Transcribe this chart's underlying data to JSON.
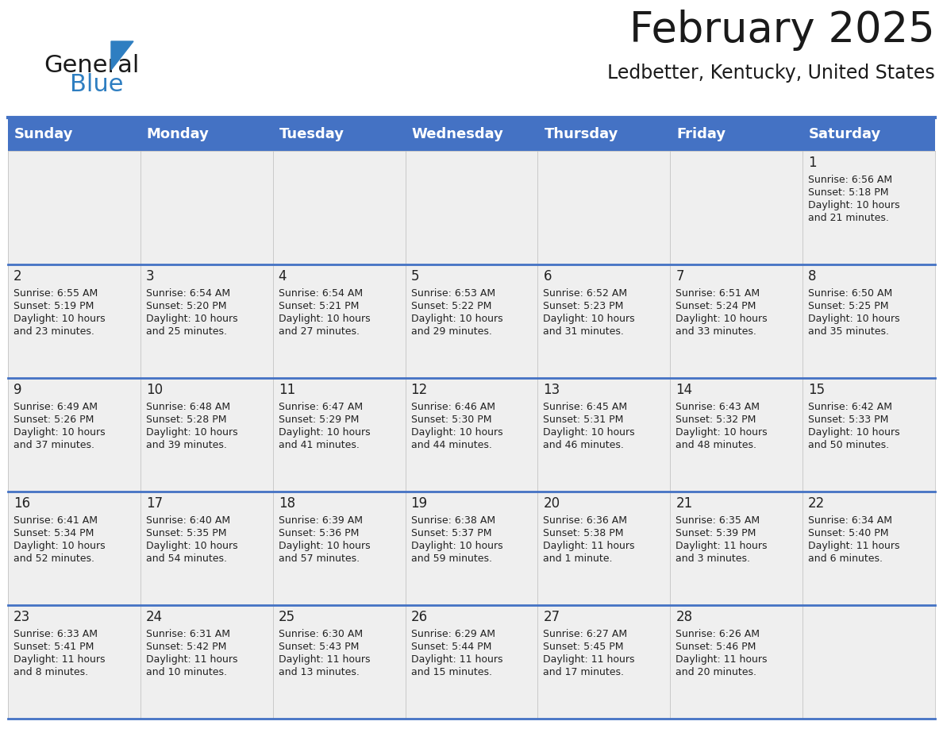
{
  "title": "February 2025",
  "subtitle": "Ledbetter, Kentucky, United States",
  "header_color": "#4472C4",
  "header_text_color": "#FFFFFF",
  "cell_bg_color": "#EFEFEF",
  "day_headers": [
    "Sunday",
    "Monday",
    "Tuesday",
    "Wednesday",
    "Thursday",
    "Friday",
    "Saturday"
  ],
  "title_fontsize": 38,
  "subtitle_fontsize": 17,
  "header_fontsize": 13,
  "day_num_fontsize": 12,
  "cell_text_fontsize": 9,
  "logo_color_general": "#1a1a1a",
  "logo_color_blue": "#2e7ec1",
  "logo_triangle_color": "#2e7ec1",
  "weeks": [
    [
      {
        "day": "",
        "lines": []
      },
      {
        "day": "",
        "lines": []
      },
      {
        "day": "",
        "lines": []
      },
      {
        "day": "",
        "lines": []
      },
      {
        "day": "",
        "lines": []
      },
      {
        "day": "",
        "lines": []
      },
      {
        "day": "1",
        "lines": [
          "Sunrise: 6:56 AM",
          "Sunset: 5:18 PM",
          "Daylight: 10 hours",
          "and 21 minutes."
        ]
      }
    ],
    [
      {
        "day": "2",
        "lines": [
          "Sunrise: 6:55 AM",
          "Sunset: 5:19 PM",
          "Daylight: 10 hours",
          "and 23 minutes."
        ]
      },
      {
        "day": "3",
        "lines": [
          "Sunrise: 6:54 AM",
          "Sunset: 5:20 PM",
          "Daylight: 10 hours",
          "and 25 minutes."
        ]
      },
      {
        "day": "4",
        "lines": [
          "Sunrise: 6:54 AM",
          "Sunset: 5:21 PM",
          "Daylight: 10 hours",
          "and 27 minutes."
        ]
      },
      {
        "day": "5",
        "lines": [
          "Sunrise: 6:53 AM",
          "Sunset: 5:22 PM",
          "Daylight: 10 hours",
          "and 29 minutes."
        ]
      },
      {
        "day": "6",
        "lines": [
          "Sunrise: 6:52 AM",
          "Sunset: 5:23 PM",
          "Daylight: 10 hours",
          "and 31 minutes."
        ]
      },
      {
        "day": "7",
        "lines": [
          "Sunrise: 6:51 AM",
          "Sunset: 5:24 PM",
          "Daylight: 10 hours",
          "and 33 minutes."
        ]
      },
      {
        "day": "8",
        "lines": [
          "Sunrise: 6:50 AM",
          "Sunset: 5:25 PM",
          "Daylight: 10 hours",
          "and 35 minutes."
        ]
      }
    ],
    [
      {
        "day": "9",
        "lines": [
          "Sunrise: 6:49 AM",
          "Sunset: 5:26 PM",
          "Daylight: 10 hours",
          "and 37 minutes."
        ]
      },
      {
        "day": "10",
        "lines": [
          "Sunrise: 6:48 AM",
          "Sunset: 5:28 PM",
          "Daylight: 10 hours",
          "and 39 minutes."
        ]
      },
      {
        "day": "11",
        "lines": [
          "Sunrise: 6:47 AM",
          "Sunset: 5:29 PM",
          "Daylight: 10 hours",
          "and 41 minutes."
        ]
      },
      {
        "day": "12",
        "lines": [
          "Sunrise: 6:46 AM",
          "Sunset: 5:30 PM",
          "Daylight: 10 hours",
          "and 44 minutes."
        ]
      },
      {
        "day": "13",
        "lines": [
          "Sunrise: 6:45 AM",
          "Sunset: 5:31 PM",
          "Daylight: 10 hours",
          "and 46 minutes."
        ]
      },
      {
        "day": "14",
        "lines": [
          "Sunrise: 6:43 AM",
          "Sunset: 5:32 PM",
          "Daylight: 10 hours",
          "and 48 minutes."
        ]
      },
      {
        "day": "15",
        "lines": [
          "Sunrise: 6:42 AM",
          "Sunset: 5:33 PM",
          "Daylight: 10 hours",
          "and 50 minutes."
        ]
      }
    ],
    [
      {
        "day": "16",
        "lines": [
          "Sunrise: 6:41 AM",
          "Sunset: 5:34 PM",
          "Daylight: 10 hours",
          "and 52 minutes."
        ]
      },
      {
        "day": "17",
        "lines": [
          "Sunrise: 6:40 AM",
          "Sunset: 5:35 PM",
          "Daylight: 10 hours",
          "and 54 minutes."
        ]
      },
      {
        "day": "18",
        "lines": [
          "Sunrise: 6:39 AM",
          "Sunset: 5:36 PM",
          "Daylight: 10 hours",
          "and 57 minutes."
        ]
      },
      {
        "day": "19",
        "lines": [
          "Sunrise: 6:38 AM",
          "Sunset: 5:37 PM",
          "Daylight: 10 hours",
          "and 59 minutes."
        ]
      },
      {
        "day": "20",
        "lines": [
          "Sunrise: 6:36 AM",
          "Sunset: 5:38 PM",
          "Daylight: 11 hours",
          "and 1 minute."
        ]
      },
      {
        "day": "21",
        "lines": [
          "Sunrise: 6:35 AM",
          "Sunset: 5:39 PM",
          "Daylight: 11 hours",
          "and 3 minutes."
        ]
      },
      {
        "day": "22",
        "lines": [
          "Sunrise: 6:34 AM",
          "Sunset: 5:40 PM",
          "Daylight: 11 hours",
          "and 6 minutes."
        ]
      }
    ],
    [
      {
        "day": "23",
        "lines": [
          "Sunrise: 6:33 AM",
          "Sunset: 5:41 PM",
          "Daylight: 11 hours",
          "and 8 minutes."
        ]
      },
      {
        "day": "24",
        "lines": [
          "Sunrise: 6:31 AM",
          "Sunset: 5:42 PM",
          "Daylight: 11 hours",
          "and 10 minutes."
        ]
      },
      {
        "day": "25",
        "lines": [
          "Sunrise: 6:30 AM",
          "Sunset: 5:43 PM",
          "Daylight: 11 hours",
          "and 13 minutes."
        ]
      },
      {
        "day": "26",
        "lines": [
          "Sunrise: 6:29 AM",
          "Sunset: 5:44 PM",
          "Daylight: 11 hours",
          "and 15 minutes."
        ]
      },
      {
        "day": "27",
        "lines": [
          "Sunrise: 6:27 AM",
          "Sunset: 5:45 PM",
          "Daylight: 11 hours",
          "and 17 minutes."
        ]
      },
      {
        "day": "28",
        "lines": [
          "Sunrise: 6:26 AM",
          "Sunset: 5:46 PM",
          "Daylight: 11 hours",
          "and 20 minutes."
        ]
      },
      {
        "day": "",
        "lines": []
      }
    ]
  ]
}
